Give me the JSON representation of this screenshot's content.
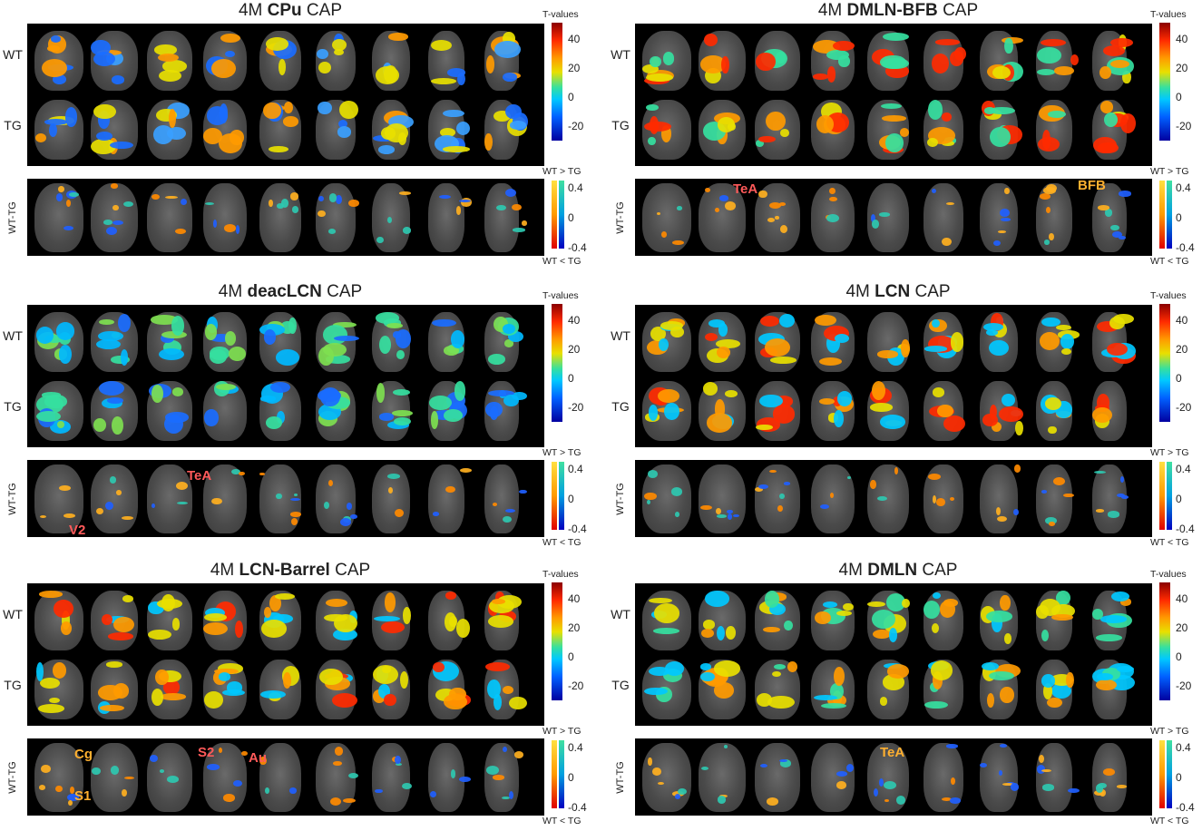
{
  "panels": [
    {
      "title_prefix": "4M ",
      "title_bold": "CPu",
      "title_suffix": " CAP",
      "annotations": []
    },
    {
      "title_prefix": "4M ",
      "title_bold": "DMLN-BFB",
      "title_suffix": " CAP",
      "annotations": [
        {
          "text": "TeA",
          "color": "#ff5a5a"
        },
        {
          "text": "BFB",
          "color": "#ffb030"
        }
      ]
    },
    {
      "title_prefix": "4M ",
      "title_bold": "deacLCN",
      "title_suffix": " CAP",
      "annotations": [
        {
          "text": "TeA",
          "color": "#ff5a5a"
        },
        {
          "text": "V2",
          "color": "#ff5a5a"
        }
      ]
    },
    {
      "title_prefix": "4M ",
      "title_bold": "LCN",
      "title_suffix": " CAP",
      "annotations": []
    },
    {
      "title_prefix": "4M ",
      "title_bold": "LCN-Barrel",
      "title_suffix": " CAP",
      "annotations": [
        {
          "text": "Cg",
          "color": "#ffb030"
        },
        {
          "text": "S1",
          "color": "#ffb030"
        },
        {
          "text": "S2",
          "color": "#ff5a5a"
        },
        {
          "text": "Au",
          "color": "#ff5a5a"
        }
      ]
    },
    {
      "title_prefix": "4M ",
      "title_bold": "DMLN",
      "title_suffix": " CAP",
      "annotations": [
        {
          "text": "TeA",
          "color": "#ffb030"
        }
      ]
    }
  ],
  "labels": {
    "wt": "WT",
    "tg": "TG",
    "diff": "WT-TG"
  },
  "colorbar": {
    "unit": "T-values",
    "ticks": [
      "40",
      "20",
      "0",
      "-20"
    ],
    "diff_ticks": [
      "0.4",
      "0",
      "-0.4"
    ],
    "wt_gt_tg": "WT > TG",
    "wt_lt_tg": "WT < TG"
  }
}
